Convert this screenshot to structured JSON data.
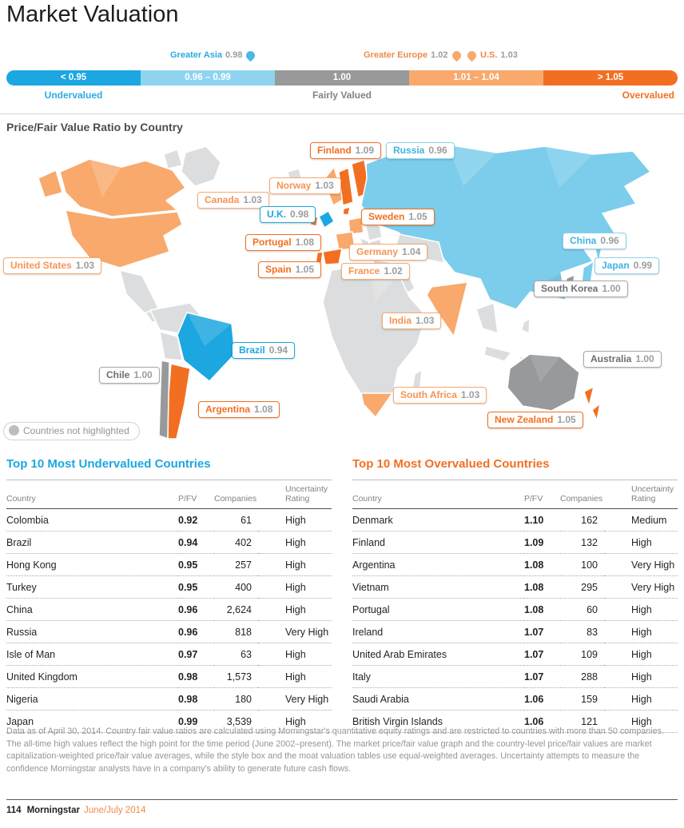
{
  "page": {
    "title": "Market Valuation",
    "section_title": "Price/Fair Value Ratio by Country",
    "footnote": "Data as of April 30, 2014. Country fair value ratios are calculated using Morningstar's quantitative equity ratings and are restricted to countries with more than 50 companies. The all-time high values reflect the high point for the time period (June 2002–present). The market price/fair value graph and the country-level price/fair values are market capitalization-weighted price/fair value averages, while the style box and the moat valuation tables use equal-weighted averages. Uncertainty attempts to measure the confidence Morningstar analysts have in a company's ability to generate future cash flows.",
    "footer": {
      "page_number": "114",
      "brand": "Morningstar",
      "issue": "June/July 2014"
    }
  },
  "colors": {
    "undervalued_strong": "#1ca7e0",
    "undervalued_light": "#8ed4f0",
    "fairly_valued": "#97999b",
    "overvalued_light": "#f8a96b",
    "overvalued_strong": "#f26f21",
    "neutral_map": "#dcddde"
  },
  "scale": {
    "markers": [
      {
        "label": "Greater Asia",
        "value": "0.98",
        "tone": "blight"
      },
      {
        "label": "Greater Europe",
        "value": "1.02",
        "tone": "olight"
      },
      {
        "label": "U.S.",
        "value": "1.03",
        "tone": "olight"
      }
    ],
    "segments": [
      {
        "label": "< 0.95"
      },
      {
        "label": "0.96 – 0.99"
      },
      {
        "label": "1.00"
      },
      {
        "label": "1.01 – 1.04"
      },
      {
        "label": "> 1.05"
      }
    ],
    "captions": [
      {
        "label": "Undervalued"
      },
      {
        "label": "Fairly Valued"
      },
      {
        "label": "Overvalued"
      }
    ]
  },
  "map": {
    "legend": "Countries not highlighted",
    "labels": [
      {
        "country": "Finland",
        "value": "1.09",
        "tone": "ostrong"
      },
      {
        "country": "Russia",
        "value": "0.96",
        "tone": "blight"
      },
      {
        "country": "Norway",
        "value": "1.03",
        "tone": "olight"
      },
      {
        "country": "Canada",
        "value": "1.03",
        "tone": "olight"
      },
      {
        "country": "U.K.",
        "value": "0.98",
        "tone": "bstrong"
      },
      {
        "country": "Sweden",
        "value": "1.05",
        "tone": "ostrong"
      },
      {
        "country": "Portugal",
        "value": "1.08",
        "tone": "ostrong"
      },
      {
        "country": "China",
        "value": "0.96",
        "tone": "blight"
      },
      {
        "country": "Germany",
        "value": "1.04",
        "tone": "olight"
      },
      {
        "country": "United States",
        "value": "1.03",
        "tone": "olight"
      },
      {
        "country": "Japan",
        "value": "0.99",
        "tone": "blight"
      },
      {
        "country": "Spain",
        "value": "1.05",
        "tone": "ostrong"
      },
      {
        "country": "France",
        "value": "1.02",
        "tone": "olight"
      },
      {
        "country": "South Korea",
        "value": "1.00",
        "tone": "fair"
      },
      {
        "country": "India",
        "value": "1.03",
        "tone": "olight"
      },
      {
        "country": "Brazil",
        "value": "0.94",
        "tone": "bstrong"
      },
      {
        "country": "Australia",
        "value": "1.00",
        "tone": "fair"
      },
      {
        "country": "Chile",
        "value": "1.00",
        "tone": "fair"
      },
      {
        "country": "South Africa",
        "value": "1.03",
        "tone": "olight"
      },
      {
        "country": "Argentina",
        "value": "1.08",
        "tone": "ostrong"
      },
      {
        "country": "New Zealand",
        "value": "1.05",
        "tone": "ostrong"
      }
    ]
  },
  "tables": [
    {
      "title": "Top 10 Most Undervalued Countries",
      "headers": {
        "country": "Country",
        "pfv": "P/FV",
        "companies": "Companies",
        "rating": "Uncertainty Rating"
      },
      "rows": [
        {
          "country": "Colombia",
          "pfv": "0.92",
          "companies": "61",
          "rating": "High",
          "tone": "bstrong"
        },
        {
          "country": "Brazil",
          "pfv": "0.94",
          "companies": "402",
          "rating": "High",
          "tone": "bstrong"
        },
        {
          "country": "Hong Kong",
          "pfv": "0.95",
          "companies": "257",
          "rating": "High",
          "tone": "bstrong"
        },
        {
          "country": "Turkey",
          "pfv": "0.95",
          "companies": "400",
          "rating": "High",
          "tone": "bstrong"
        },
        {
          "country": "China",
          "pfv": "0.96",
          "companies": "2,624",
          "rating": "High",
          "tone": "blight"
        },
        {
          "country": "Russia",
          "pfv": "0.96",
          "companies": "818",
          "rating": "Very High",
          "tone": "blight"
        },
        {
          "country": "Isle of Man",
          "pfv": "0.97",
          "companies": "63",
          "rating": "High",
          "tone": "blight"
        },
        {
          "country": "United Kingdom",
          "pfv": "0.98",
          "companies": "1,573",
          "rating": "High",
          "tone": "blight"
        },
        {
          "country": "Nigeria",
          "pfv": "0.98",
          "companies": "180",
          "rating": "Very High",
          "tone": "blight"
        },
        {
          "country": "Japan",
          "pfv": "0.99",
          "companies": "3,539",
          "rating": "High",
          "tone": "blight"
        }
      ]
    },
    {
      "title": "Top 10 Most Overvalued Countries",
      "headers": {
        "country": "Country",
        "pfv": "P/FV",
        "companies": "Companies",
        "rating": "Uncertainty Rating"
      },
      "rows": [
        {
          "country": "Denmark",
          "pfv": "1.10",
          "companies": "162",
          "rating": "Medium",
          "tone": "ostrong"
        },
        {
          "country": "Finland",
          "pfv": "1.09",
          "companies": "132",
          "rating": "High",
          "tone": "ostrong"
        },
        {
          "country": "Argentina",
          "pfv": "1.08",
          "companies": "100",
          "rating": "Very High",
          "tone": "ostrong"
        },
        {
          "country": "Vietnam",
          "pfv": "1.08",
          "companies": "295",
          "rating": "Very High",
          "tone": "ostrong"
        },
        {
          "country": "Portugal",
          "pfv": "1.08",
          "companies": "60",
          "rating": "High",
          "tone": "ostrong"
        },
        {
          "country": "Ireland",
          "pfv": "1.07",
          "companies": "83",
          "rating": "High",
          "tone": "olight"
        },
        {
          "country": "United Arab Emirates",
          "pfv": "1.07",
          "companies": "109",
          "rating": "High",
          "tone": "olight"
        },
        {
          "country": "Italy",
          "pfv": "1.07",
          "companies": "288",
          "rating": "High",
          "tone": "olight"
        },
        {
          "country": "Saudi Arabia",
          "pfv": "1.06",
          "companies": "159",
          "rating": "High",
          "tone": "olight"
        },
        {
          "country": "British Virgin Islands",
          "pfv": "1.06",
          "companies": "121",
          "rating": "High",
          "tone": "olight"
        }
      ]
    }
  ]
}
